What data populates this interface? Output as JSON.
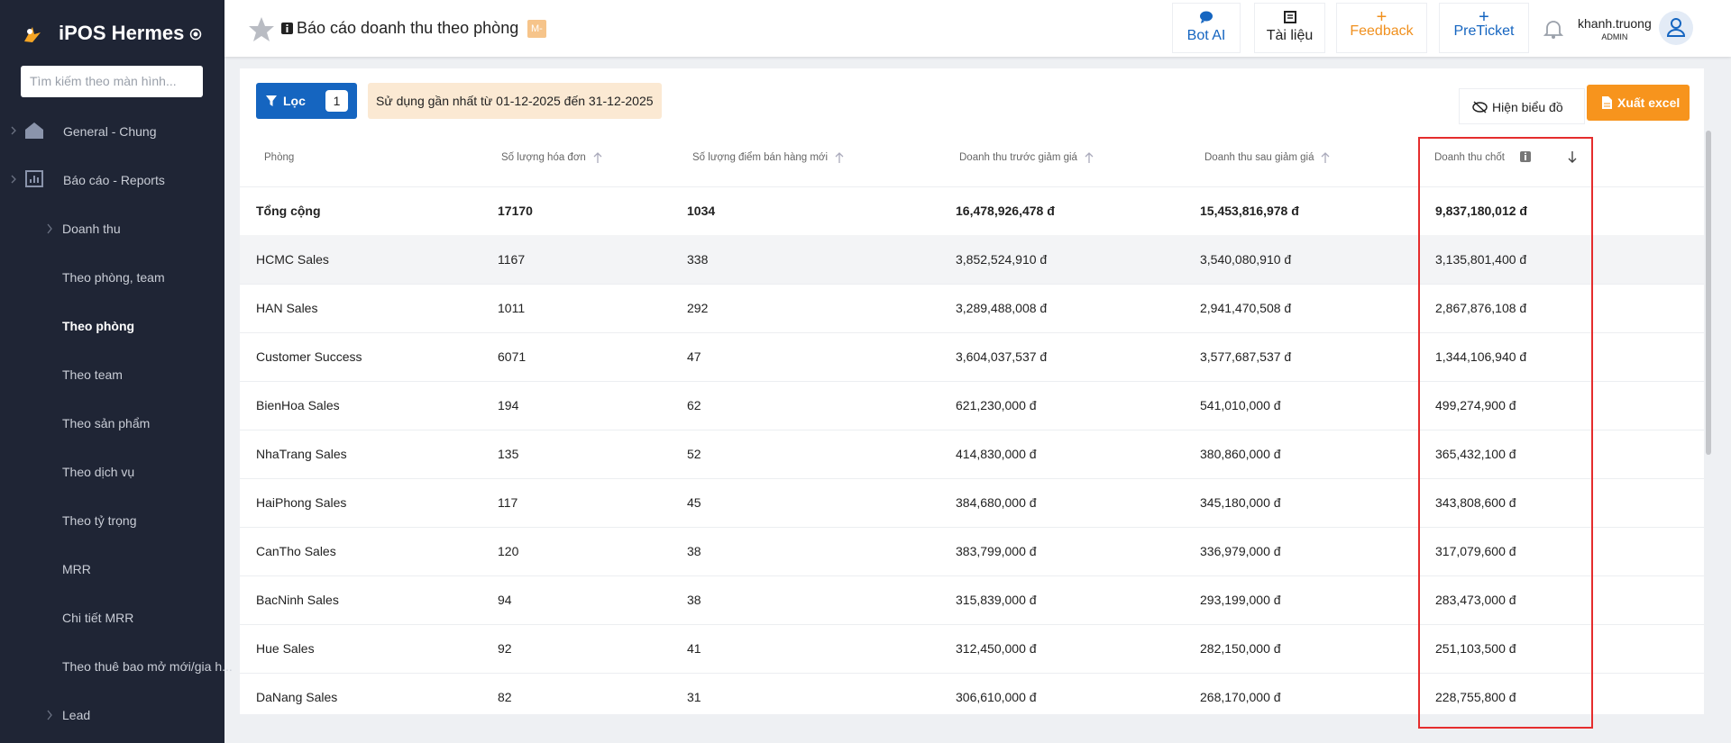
{
  "brand": "iPOS Hermes",
  "search_placeholder": "Tìm kiếm theo màn hình...",
  "nav": [
    "General - Chung",
    "Báo cáo - Reports",
    "Doanh thu",
    "Theo phòng, team",
    "Theo phòng",
    "Theo team",
    "Theo sản phẩm",
    "Theo dịch vụ",
    "Theo tỷ trọng",
    "MRR",
    "Chi tiết MRR",
    "Theo thuê bao mở mới/gia h...",
    "Lead"
  ],
  "header": {
    "title": "Báo cáo doanh thu theo phòng",
    "badge": "M-",
    "tools": [
      "Bot AI",
      "Tài liệu",
      "Feedback",
      "PreTicket"
    ],
    "user": "khanh.truong",
    "role": "ADMIN"
  },
  "toolbar": {
    "filter": "Lọc",
    "filter_count": "1",
    "note": "Sử dụng gần nhất từ 01-12-2025 đến 31-12-2025",
    "chart_toggle": "Hiện biểu đồ",
    "export": "Xuất excel"
  },
  "table": {
    "columns": [
      "Phòng",
      "Số lượng hóa đơn",
      "Số lượng điểm bán hàng mới",
      "Doanh thu trước giảm giá",
      "Doanh thu sau giảm giá",
      "Doanh thu chốt"
    ],
    "rows": [
      [
        "Tổng cộng",
        "17170",
        "1034",
        "16,478,926,478 đ",
        "15,453,816,978 đ",
        "9,837,180,012 đ"
      ],
      [
        "HCMC Sales",
        "1167",
        "338",
        "3,852,524,910 đ",
        "3,540,080,910 đ",
        "3,135,801,400 đ"
      ],
      [
        "HAN Sales",
        "1011",
        "292",
        "3,289,488,008 đ",
        "2,941,470,508 đ",
        "2,867,876,108 đ"
      ],
      [
        "Customer Success",
        "6071",
        "47",
        "3,604,037,537 đ",
        "3,577,687,537 đ",
        "1,344,106,940 đ"
      ],
      [
        "BienHoa Sales",
        "194",
        "62",
        "621,230,000 đ",
        "541,010,000 đ",
        "499,274,900 đ"
      ],
      [
        "NhaTrang Sales",
        "135",
        "52",
        "414,830,000 đ",
        "380,860,000 đ",
        "365,432,100 đ"
      ],
      [
        "HaiPhong Sales",
        "117",
        "45",
        "384,680,000 đ",
        "345,180,000 đ",
        "343,808,600 đ"
      ],
      [
        "CanTho Sales",
        "120",
        "38",
        "383,799,000 đ",
        "336,979,000 đ",
        "317,079,600 đ"
      ],
      [
        "BacNinh Sales",
        "94",
        "38",
        "315,839,000 đ",
        "293,199,000 đ",
        "283,473,000 đ"
      ],
      [
        "Hue Sales",
        "92",
        "41",
        "312,450,000 đ",
        "282,150,000 đ",
        "251,103,500 đ"
      ],
      [
        "DaNang Sales",
        "82",
        "31",
        "306,610,000 đ",
        "268,170,000 đ",
        "228,755,800 đ"
      ]
    ]
  }
}
